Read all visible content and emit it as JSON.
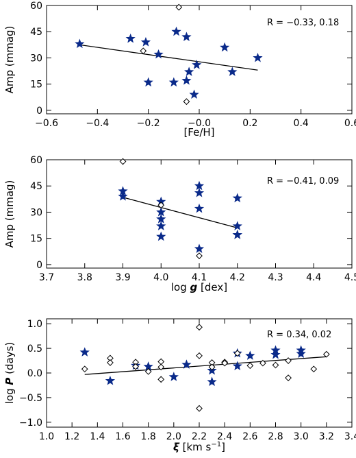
{
  "chart_data": [
    {
      "type": "scatter",
      "xlabel": "[Fe/H]",
      "ylabel": "Amp (mmag)",
      "xlim": [
        -0.6,
        0.6
      ],
      "ylim": [
        -2,
        60
      ],
      "xticks": [
        -0.6,
        -0.4,
        -0.2,
        -0.0,
        0.2,
        0.4,
        0.6
      ],
      "xtick_labels": [
        "−0.6",
        "−0.4",
        "−0.2",
        "−0.0",
        "0.2",
        "0.4",
        "0.6"
      ],
      "yticks": [
        0,
        15,
        30,
        45,
        60
      ],
      "ytick_labels": [
        "0",
        "15",
        "30",
        "45",
        "60"
      ],
      "annotation": "R = −0.33, 0.18",
      "fit_line": [
        [
          -0.47,
          37.5
        ],
        [
          0.23,
          23.0
        ]
      ],
      "series": [
        {
          "marker": "star",
          "color": "#0a2a8a",
          "points": [
            [
              -0.47,
              38
            ],
            [
              -0.27,
              41
            ],
            [
              -0.21,
              39
            ],
            [
              -0.2,
              16
            ],
            [
              -0.16,
              32
            ],
            [
              -0.1,
              16
            ],
            [
              -0.09,
              45
            ],
            [
              -0.05,
              42
            ],
            [
              -0.05,
              17
            ],
            [
              -0.04,
              22
            ],
            [
              -0.02,
              9
            ],
            [
              -0.01,
              26
            ],
            [
              0.1,
              36
            ],
            [
              0.13,
              22
            ],
            [
              0.23,
              30
            ]
          ]
        },
        {
          "marker": "diamond",
          "color": "#000000",
          "points": [
            [
              -0.22,
              34
            ],
            [
              -0.08,
              59
            ],
            [
              -0.05,
              5
            ]
          ]
        }
      ]
    },
    {
      "type": "scatter",
      "xlabel_prefix": "log ",
      "xlabel_var": "g",
      "xlabel_suffix": " [dex]",
      "ylabel": "Amp (mmag)",
      "xlim": [
        3.7,
        4.5
      ],
      "ylim": [
        -2,
        60
      ],
      "xticks": [
        3.7,
        3.8,
        3.9,
        4.0,
        4.1,
        4.2,
        4.3,
        4.4,
        4.5
      ],
      "xtick_labels": [
        "3.7",
        "3.8",
        "3.9",
        "4.0",
        "4.1",
        "4.2",
        "4.3",
        "4.4",
        "4.5"
      ],
      "yticks": [
        0,
        15,
        30,
        45,
        60
      ],
      "ytick_labels": [
        "0",
        "15",
        "30",
        "45",
        "60"
      ],
      "annotation": "R = −0.41, 0.09",
      "fit_line": [
        [
          3.9,
          38.5
        ],
        [
          4.2,
          21.0
        ]
      ],
      "series": [
        {
          "marker": "star",
          "color": "#0a2a8a",
          "points": [
            [
              3.9,
              42
            ],
            [
              3.9,
              39
            ],
            [
              4.0,
              36
            ],
            [
              4.0,
              30
            ],
            [
              4.0,
              26
            ],
            [
              4.0,
              22
            ],
            [
              4.0,
              16
            ],
            [
              4.1,
              45
            ],
            [
              4.1,
              41
            ],
            [
              4.1,
              32
            ],
            [
              4.1,
              9
            ],
            [
              4.2,
              38
            ],
            [
              4.2,
              22
            ],
            [
              4.2,
              17
            ],
            [
              4.2,
              17
            ]
          ]
        },
        {
          "marker": "diamond",
          "color": "#000000",
          "points": [
            [
              3.9,
              59
            ],
            [
              4.0,
              34
            ],
            [
              4.1,
              5
            ]
          ]
        }
      ]
    },
    {
      "type": "scatter",
      "xlabel_var": "ξ",
      "xlabel_suffix": " [km s",
      "xlabel_sup": "−1",
      "xlabel_end": "]",
      "ylabel_prefix": "log ",
      "ylabel_var": "P",
      "ylabel_suffix": " (days)",
      "xlim": [
        1.0,
        3.4
      ],
      "ylim": [
        -1.1,
        1.1
      ],
      "xticks": [
        1.0,
        1.2,
        1.4,
        1.6,
        1.8,
        2.0,
        2.2,
        2.4,
        2.6,
        2.8,
        3.0,
        3.2,
        3.4
      ],
      "xtick_labels": [
        "1.0",
        "1.2",
        "1.4",
        "1.6",
        "1.8",
        "2.0",
        "2.2",
        "2.4",
        "2.6",
        "2.8",
        "3.0",
        "3.2",
        "3.4"
      ],
      "yticks": [
        -1.0,
        -0.5,
        0.0,
        0.5,
        1.0
      ],
      "ytick_labels": [
        "−1.0",
        "−0.5",
        "0.0",
        "0.5",
        "1.0"
      ],
      "annotation": "R = 0.34, 0.02",
      "fit_line": [
        [
          1.3,
          -0.03
        ],
        [
          3.2,
          0.33
        ]
      ],
      "series": [
        {
          "marker": "star",
          "color": "#0a2a8a",
          "points": [
            [
              1.3,
              0.42
            ],
            [
              1.5,
              -0.16
            ],
            [
              1.7,
              0.15
            ],
            [
              1.8,
              0.13
            ],
            [
              2.0,
              -0.08
            ],
            [
              2.1,
              0.17
            ],
            [
              2.3,
              0.05
            ],
            [
              2.3,
              -0.18
            ],
            [
              2.5,
              0.4
            ],
            [
              2.5,
              0.14
            ],
            [
              2.6,
              0.35
            ],
            [
              2.8,
              0.46
            ],
            [
              2.8,
              0.37
            ],
            [
              3.0,
              0.46
            ],
            [
              3.0,
              0.39
            ]
          ]
        },
        {
          "marker": "diamond",
          "color": "#000000",
          "points": [
            [
              1.3,
              0.08
            ],
            [
              1.5,
              0.3
            ],
            [
              1.5,
              0.21
            ],
            [
              1.7,
              0.22
            ],
            [
              1.7,
              0.13
            ],
            [
              1.8,
              0.03
            ],
            [
              1.9,
              0.23
            ],
            [
              1.9,
              0.12
            ],
            [
              1.9,
              -0.13
            ],
            [
              2.2,
              0.93
            ],
            [
              2.2,
              0.35
            ],
            [
              2.2,
              -0.72
            ],
            [
              2.3,
              0.21
            ],
            [
              2.3,
              0.12
            ],
            [
              2.4,
              0.22
            ],
            [
              2.4,
              0.2
            ],
            [
              2.5,
              0.4
            ],
            [
              2.6,
              0.15
            ],
            [
              2.7,
              0.2
            ],
            [
              2.8,
              0.16
            ],
            [
              2.9,
              -0.1
            ],
            [
              2.9,
              0.25
            ],
            [
              3.1,
              0.08
            ],
            [
              3.2,
              0.38
            ]
          ]
        }
      ]
    }
  ]
}
